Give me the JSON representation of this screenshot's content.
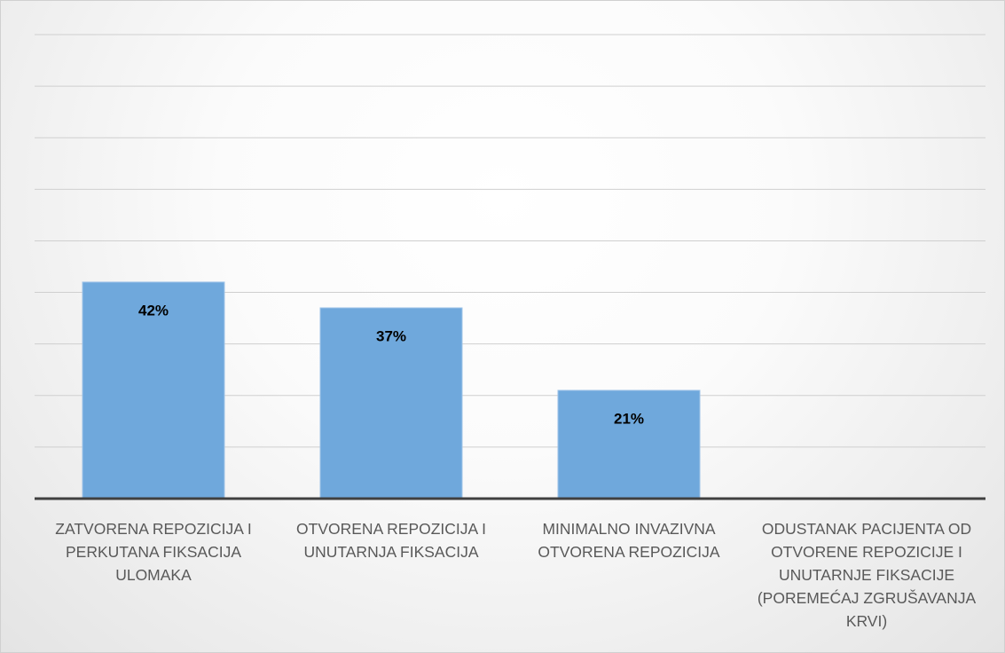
{
  "chart_data": {
    "type": "bar",
    "categories": [
      "ZATVORENA REPOZICIJA I PERKUTANA FIKSACIJA ULOMAKA",
      "OTVORENA REPOZICIJA I UNUTARNJA FIKSACIJA",
      "MINIMALNO INVAZIVNA OTVORENA REPOZICIJA",
      "ODUSTANAK PACIJENTA OD OTVORENE REPOZICIJE I UNUTARNJE FIKSACIJE (POREMEĆAJ ZGRUŠAVANJA KRVI)"
    ],
    "values": [
      42,
      37,
      21,
      0
    ],
    "value_labels": [
      "42%",
      "37%",
      "21%",
      null
    ],
    "color": "#6fa8dc",
    "ylim": [
      0,
      90
    ],
    "yticks": [
      0,
      10,
      20,
      30,
      40,
      50,
      60,
      70,
      80,
      90
    ],
    "grid": true
  }
}
